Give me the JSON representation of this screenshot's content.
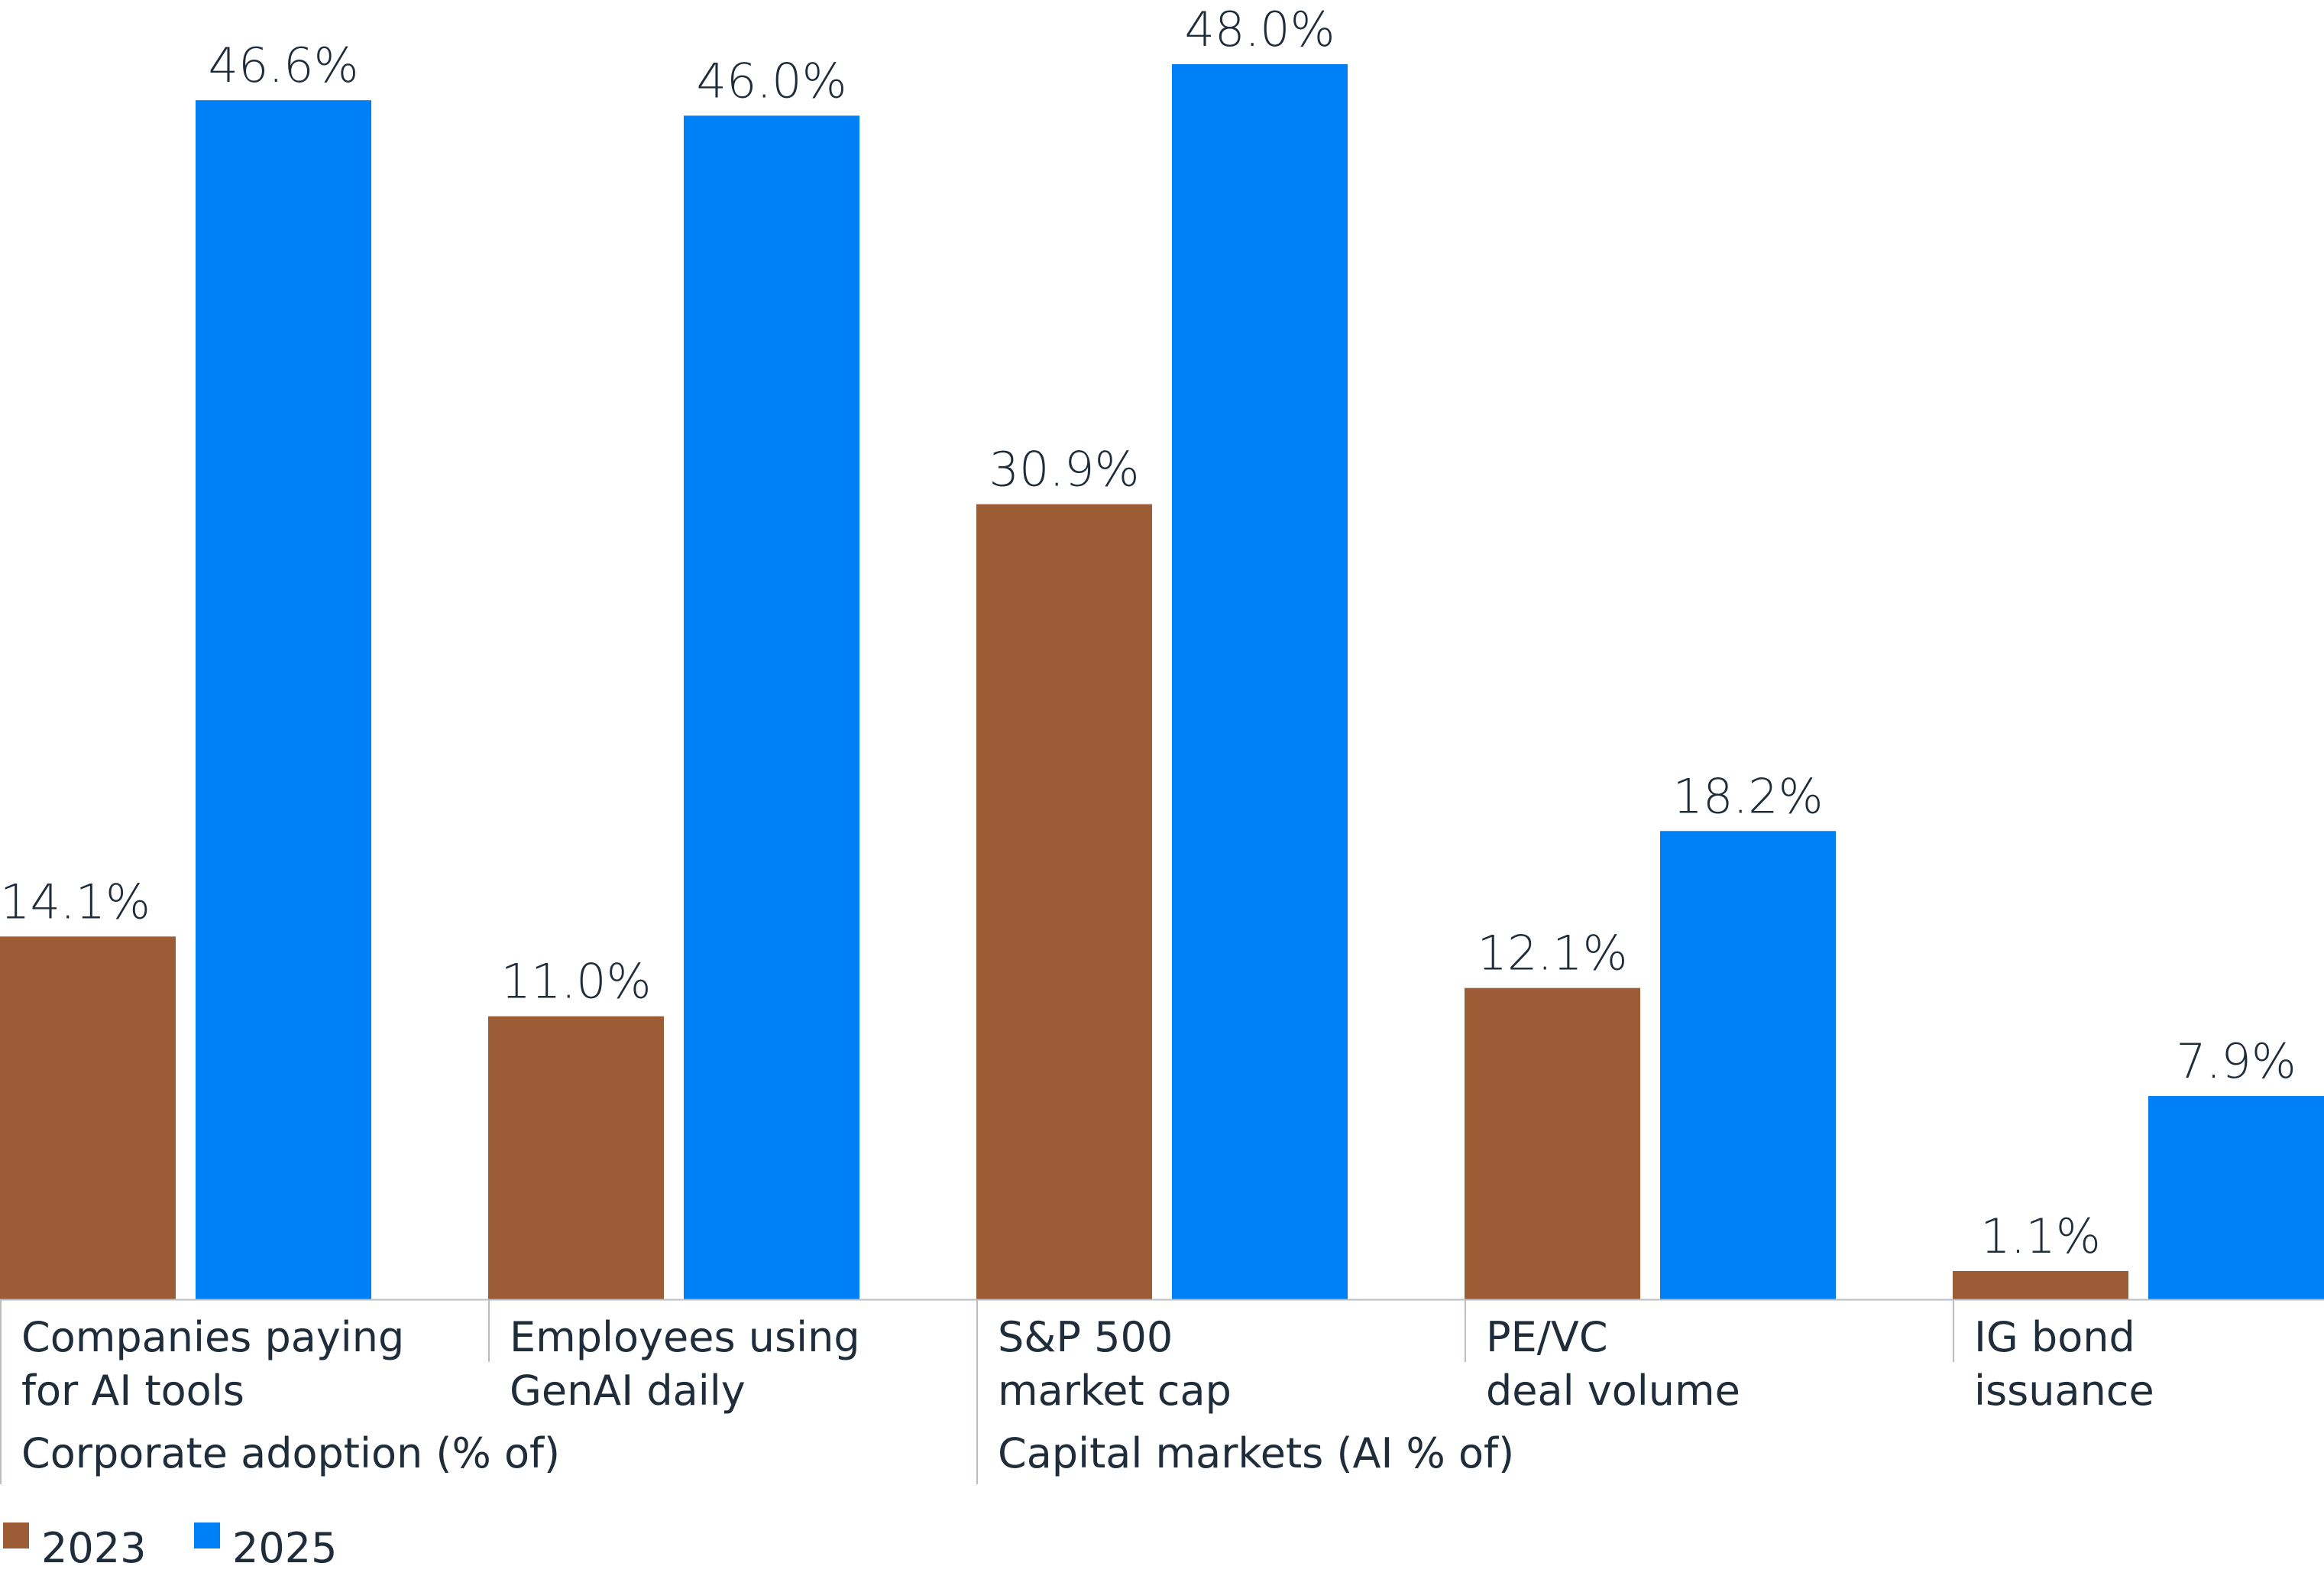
{
  "chart_data": {
    "type": "bar",
    "categories": [
      [
        "Companies paying",
        "for AI tools"
      ],
      [
        "Employees using",
        "GenAI daily"
      ],
      [
        "S&P 500",
        "market cap"
      ],
      [
        "PE/VC",
        "deal volume"
      ],
      [
        "IG bond",
        "issuance"
      ]
    ],
    "groups": [
      {
        "label": "Corporate adoption (% of)",
        "categories": [
          0,
          1
        ]
      },
      {
        "label": "Capital markets (AI % of)",
        "categories": [
          2,
          3,
          4
        ]
      }
    ],
    "series": [
      {
        "name": "2023",
        "color": "#9c5d36",
        "values": [
          14.1,
          11.0,
          30.9,
          12.1,
          1.1
        ],
        "labels": [
          "14.1%",
          "11.0%",
          "30.9%",
          "12.1%",
          "1.1%"
        ]
      },
      {
        "name": "2025",
        "color": "#0080f6",
        "values": [
          46.6,
          46.0,
          48.0,
          18.2,
          7.9
        ],
        "labels": [
          "46.6%",
          "46.0%",
          "48.0%",
          "18.2%",
          "7.9%"
        ]
      }
    ],
    "ylim": [
      0,
      48.0
    ],
    "legend_position": "bottom-left",
    "grid": false
  }
}
